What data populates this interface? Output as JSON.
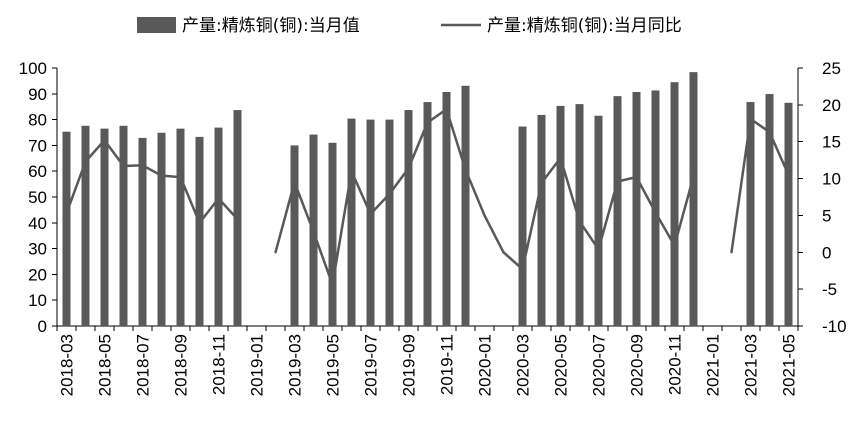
{
  "chart_data": {
    "type": "bar",
    "legend_position": "top",
    "grid": false,
    "series": [
      {
        "name": "产量:精炼铜(铜):当月值",
        "type": "bar",
        "axis": "left",
        "color": "#595959",
        "values": [
          75.3,
          77.6,
          76.5,
          77.6,
          72.9,
          74.9,
          76.5,
          73.3,
          76.9,
          83.7,
          null,
          null,
          70.0,
          74.2,
          71.0,
          80.4,
          80.0,
          80.0,
          83.7,
          86.8,
          90.7,
          93.1,
          null,
          null,
          77.3,
          81.8,
          85.3,
          86.0,
          81.5,
          89.1,
          90.7,
          91.3,
          94.5,
          98.4,
          null,
          null,
          86.8,
          89.9,
          86.5
        ]
      },
      {
        "name": "产量:精炼铜(铜):当月同比",
        "type": "line",
        "axis": "right",
        "color": "#595959",
        "values": [
          5.3,
          12.3,
          15.2,
          11.7,
          11.8,
          10.4,
          10.2,
          4.0,
          7.3,
          4.5,
          null,
          0.0,
          9.5,
          2.8,
          -4.4,
          11.0,
          5.2,
          7.9,
          11.4,
          17.6,
          19.4,
          11.2,
          5.0,
          0.0,
          -2.3,
          9.4,
          12.8,
          4.2,
          0.4,
          9.6,
          10.2,
          5.4,
          0.9,
          10.3,
          null,
          0.0,
          18.1,
          16.3,
          10.5
        ]
      }
    ],
    "x": [
      "2018-03",
      "2018-04",
      "2018-05",
      "2018-06",
      "2018-07",
      "2018-08",
      "2018-09",
      "2018-10",
      "2018-11",
      "2018-12",
      "2019-01",
      "2019-02",
      "2019-03",
      "2019-04",
      "2019-05",
      "2019-06",
      "2019-07",
      "2019-08",
      "2019-09",
      "2019-10",
      "2019-11",
      "2019-12",
      "2020-01",
      "2020-02",
      "2020-03",
      "2020-04",
      "2020-05",
      "2020-06",
      "2020-07",
      "2020-08",
      "2020-09",
      "2020-10",
      "2020-11",
      "2020-12",
      "2021-01",
      "2021-02",
      "2021-03",
      "2021-04",
      "2021-05"
    ],
    "x_tick_labels": [
      "2018-03",
      "2018-05",
      "2018-07",
      "2018-09",
      "2018-11",
      "2019-01",
      "2019-03",
      "2019-05",
      "2019-07",
      "2019-09",
      "2019-11",
      "2020-01",
      "2020-03",
      "2020-05",
      "2020-07",
      "2020-09",
      "2020-11",
      "2021-01",
      "2021-03",
      "2021-05"
    ],
    "y_left": {
      "ylim": [
        0,
        100
      ],
      "ticks": [
        0,
        10,
        20,
        30,
        40,
        50,
        60,
        70,
        80,
        90,
        100
      ]
    },
    "y_right": {
      "ylim": [
        -10,
        25
      ],
      "ticks": [
        -10,
        -5,
        0,
        5,
        10,
        15,
        20,
        25
      ]
    }
  }
}
